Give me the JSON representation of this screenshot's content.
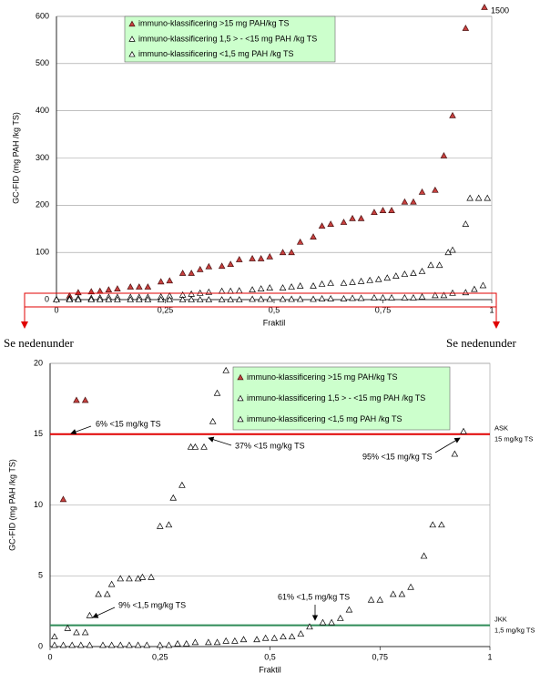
{
  "chart_data": [
    {
      "type": "scatter",
      "y_label": "GC-FID (mg PAH /kg TS)",
      "x_label": "Fraktil",
      "xlim": [
        0,
        1
      ],
      "xticks": [
        0,
        {
          "value": 0.25,
          "label": "0,25"
        },
        {
          "value": 0.5,
          "label": "0,5"
        },
        {
          "value": 0.75,
          "label": "0,75"
        },
        1
      ],
      "ylim": [
        0,
        600
      ],
      "yticks": [
        0,
        100,
        200,
        300,
        400,
        500,
        600
      ],
      "grid": true,
      "series": [
        {
          "name": "immuno-klassificering >15 mg PAH/kg TS",
          "color": "#c8413f",
          "x": [
            0.03,
            0.05,
            0.08,
            0.1,
            0.12,
            0.14,
            0.17,
            0.19,
            0.21,
            0.24,
            0.26,
            0.29,
            0.31,
            0.33,
            0.35,
            0.38,
            0.4,
            0.42,
            0.45,
            0.47,
            0.49,
            0.52,
            0.54,
            0.56,
            0.59,
            0.61,
            0.63,
            0.66,
            0.68,
            0.7,
            0.73,
            0.75,
            0.77,
            0.8,
            0.82,
            0.84,
            0.87,
            0.89,
            0.91,
            0.94
          ],
          "values": [
            8,
            15,
            17,
            18,
            21,
            23,
            27,
            27,
            27,
            38,
            40,
            56,
            56,
            64,
            70,
            71,
            75,
            85,
            87,
            87,
            91,
            100,
            100,
            122,
            133,
            156,
            160,
            164,
            172,
            172,
            185,
            189,
            189,
            207,
            207,
            228,
            232,
            305,
            390,
            575
          ]
        },
        {
          "name": "immuno-klassificering 1,5 > - <15 mg PAH /kg TS",
          "color": "#ffffff",
          "x": [
            0.0,
            0.03,
            0.05,
            0.08,
            0.1,
            0.12,
            0.14,
            0.17,
            0.19,
            0.21,
            0.24,
            0.26,
            0.29,
            0.31,
            0.33,
            0.35,
            0.38,
            0.4,
            0.42,
            0.45,
            0.47,
            0.49,
            0.52,
            0.54,
            0.56,
            0.59,
            0.61,
            0.63,
            0.66,
            0.68,
            0.7,
            0.72,
            0.74,
            0.76,
            0.78,
            0.8,
            0.82,
            0.84,
            0.86,
            0.88,
            0.9,
            0.91,
            0.94,
            0.95,
            0.97,
            0.99
          ],
          "values": [
            1,
            2,
            3,
            3,
            4,
            5,
            5,
            5,
            5,
            5,
            6,
            8,
            10,
            12,
            14,
            16,
            18,
            18,
            19,
            21,
            23,
            25,
            25,
            27,
            29,
            29,
            33,
            35,
            35,
            37,
            39,
            41,
            43,
            46,
            50,
            54,
            56,
            60,
            73,
            73,
            100,
            105,
            160,
            215,
            215,
            215
          ]
        },
        {
          "name": "immuno-klassificering <1,5 mg PAH /kg TS",
          "color": "#ffffff",
          "x": [
            0.0,
            0.03,
            0.05,
            0.08,
            0.1,
            0.12,
            0.14,
            0.17,
            0.19,
            0.21,
            0.24,
            0.26,
            0.29,
            0.31,
            0.33,
            0.35,
            0.38,
            0.4,
            0.42,
            0.45,
            0.47,
            0.49,
            0.52,
            0.54,
            0.56,
            0.59,
            0.61,
            0.63,
            0.66,
            0.68,
            0.7,
            0.73,
            0.75,
            0.77,
            0.8,
            0.82,
            0.84,
            0.87,
            0.89,
            0.91,
            0.94,
            0.96,
            0.98
          ],
          "values": [
            0,
            0,
            0,
            0,
            0,
            0,
            0,
            0,
            0,
            0,
            0,
            0,
            0,
            0,
            0,
            0,
            0,
            0,
            0,
            1,
            1,
            1,
            1,
            1,
            1,
            1,
            2,
            2,
            2,
            3,
            3,
            4,
            4,
            4,
            4,
            4,
            6,
            9,
            9,
            14,
            15,
            22,
            30
          ]
        }
      ],
      "annotations": [
        "1500"
      ],
      "notes": [
        "Se nedenunder",
        "Se nedenunder"
      ]
    },
    {
      "type": "scatter",
      "y_label": "GC-FID (mg PAH /kg TS)",
      "x_label": "Fraktil",
      "xlim": [
        0,
        1
      ],
      "xticks": [
        0,
        {
          "value": 0.25,
          "label": "0,25"
        },
        {
          "value": 0.5,
          "label": "0,5"
        },
        {
          "value": 0.75,
          "label": "0,75"
        },
        1
      ],
      "ylim": [
        0,
        20
      ],
      "yticks": [
        0,
        5,
        10,
        15,
        20
      ],
      "grid": true,
      "series": [
        {
          "name": "immuno-klassificering >15 mg PAH/kg TS",
          "color": "#c8413f",
          "x": [
            0.03,
            0.06,
            0.08
          ],
          "values": [
            10.4,
            17.4,
            17.4
          ]
        },
        {
          "name": "immuno-klassificering 1,5 > - <15 mg PAH /kg TS",
          "color": "#ffffff",
          "x": [
            0.01,
            0.04,
            0.06,
            0.08,
            0.09,
            0.11,
            0.13,
            0.14,
            0.16,
            0.18,
            0.2,
            0.21,
            0.23,
            0.25,
            0.27,
            0.28,
            0.3,
            0.32,
            0.33,
            0.35,
            0.37,
            0.38,
            0.4
          ],
          "values": [
            0.7,
            1.3,
            1.0,
            1.0,
            2.2,
            3.7,
            3.7,
            4.4,
            4.8,
            4.8,
            4.8,
            4.9,
            4.9,
            8.5,
            8.6,
            10.5,
            11.4,
            14.1,
            14.1,
            14.1,
            15.9,
            17.9,
            19.5
          ]
        },
        {
          "name": "immuno-klassificering <1,5 mg PAH /kg TS",
          "color": "#ffffff",
          "x": [
            0.01,
            0.03,
            0.05,
            0.07,
            0.09,
            0.12,
            0.14,
            0.16,
            0.18,
            0.2,
            0.22,
            0.25,
            0.27,
            0.29,
            0.31,
            0.33,
            0.36,
            0.38,
            0.4,
            0.42,
            0.44,
            0.47,
            0.49,
            0.51,
            0.53,
            0.55,
            0.57,
            0.59,
            0.62,
            0.64,
            0.66,
            0.68,
            0.73,
            0.75,
            0.78,
            0.8,
            0.82,
            0.85,
            0.87,
            0.89,
            0.92,
            0.94
          ],
          "values": [
            0.1,
            0.1,
            0.1,
            0.1,
            0.1,
            0.1,
            0.1,
            0.1,
            0.1,
            0.1,
            0.1,
            0.1,
            0.1,
            0.2,
            0.2,
            0.3,
            0.3,
            0.3,
            0.4,
            0.4,
            0.5,
            0.5,
            0.6,
            0.6,
            0.7,
            0.7,
            0.9,
            1.4,
            1.7,
            1.7,
            2.0,
            2.6,
            3.3,
            3.3,
            3.7,
            3.7,
            4.2,
            6.4,
            8.6,
            8.6,
            13.6,
            15.2
          ]
        }
      ],
      "hlines": [
        {
          "value": 15,
          "label": "ASK",
          "note": "15 mg/kg TS",
          "color": "#e00000"
        },
        {
          "value": 1.5,
          "label": "JKK",
          "note": "1,5 mg/kg TS",
          "color": "#2e8b57"
        }
      ],
      "annotations": [
        "6% <15 mg/kg TS",
        "37% <15 mg/kg TS",
        "95% <15 mg/kg TS",
        "9% <1,5 mg/kg TS",
        "61% <1,5 mg/kg TS"
      ]
    }
  ]
}
